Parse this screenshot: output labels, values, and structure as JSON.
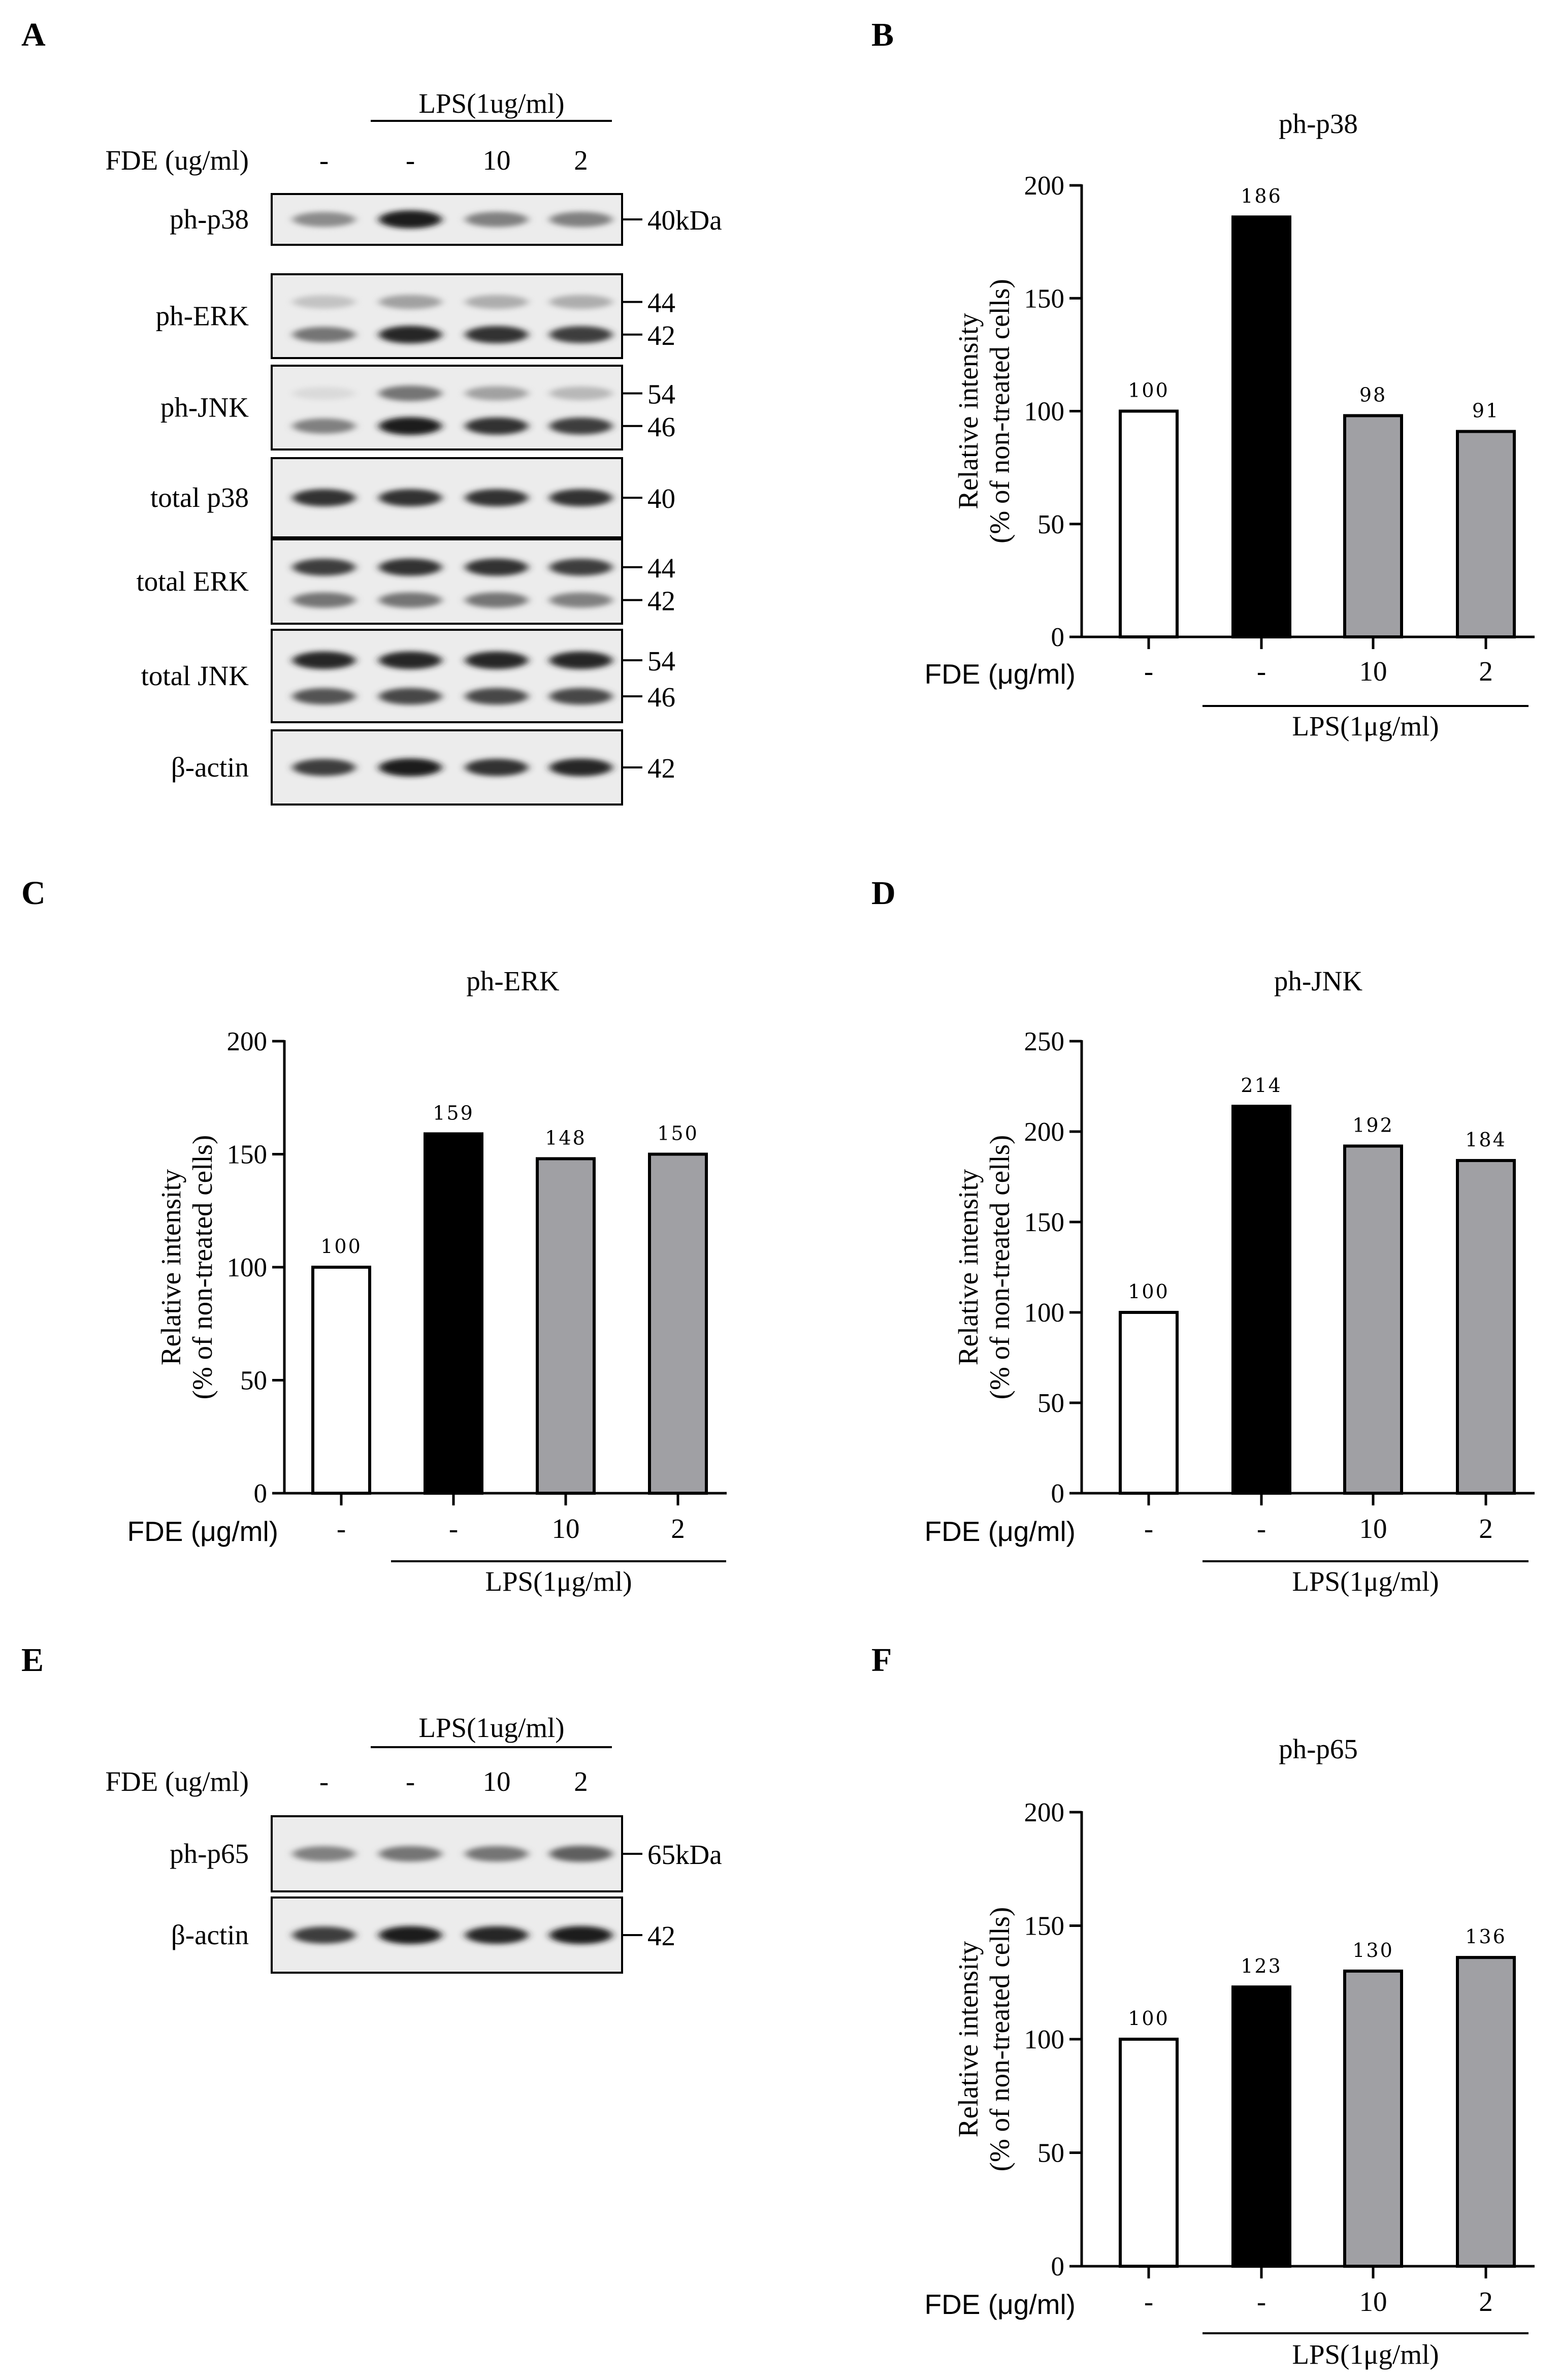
{
  "panels": {
    "A": "A",
    "B": "B",
    "C": "C",
    "D": "D",
    "E": "E",
    "F": "F"
  },
  "blots_A": {
    "treatment_label": "LPS(1ug/ml)",
    "dose_label": "FDE (ug/ml)",
    "doses": [
      "-",
      "-",
      "10",
      "2"
    ],
    "rows": [
      {
        "name": "ph-p38",
        "markers": [
          "40kDa"
        ],
        "bands": [
          [
            0.45,
            0.95,
            0.5,
            0.5
          ]
        ]
      },
      {
        "name": "ph-ERK",
        "markers": [
          "44",
          "42"
        ],
        "bands": [
          [
            0.2,
            0.35,
            0.3,
            0.3
          ],
          [
            0.55,
            0.9,
            0.85,
            0.8
          ]
        ]
      },
      {
        "name": "ph-JNK",
        "markers": [
          "54",
          "46"
        ],
        "bands": [
          [
            0.1,
            0.55,
            0.35,
            0.25
          ],
          [
            0.5,
            0.95,
            0.85,
            0.8
          ]
        ]
      },
      {
        "name": "total p38",
        "markers": [
          "40"
        ],
        "bands": [
          [
            0.85,
            0.85,
            0.85,
            0.85
          ]
        ]
      },
      {
        "name": "total ERK",
        "markers": [
          "44",
          "42"
        ],
        "bands": [
          [
            0.8,
            0.85,
            0.85,
            0.8
          ],
          [
            0.55,
            0.55,
            0.55,
            0.5
          ]
        ]
      },
      {
        "name": "total JNK",
        "markers": [
          "54",
          "46"
        ],
        "bands": [
          [
            0.9,
            0.9,
            0.9,
            0.9
          ],
          [
            0.7,
            0.75,
            0.75,
            0.75
          ]
        ]
      },
      {
        "name": "β-actin",
        "markers": [
          "42"
        ],
        "bands": [
          [
            0.8,
            0.95,
            0.85,
            0.9
          ]
        ]
      }
    ]
  },
  "blots_E": {
    "treatment_label": "LPS(1ug/ml)",
    "dose_label": "FDE (ug/ml)",
    "doses": [
      "-",
      "-",
      "10",
      "2"
    ],
    "rows": [
      {
        "name": "ph-p65",
        "markers": [
          "65kDa"
        ],
        "bands": [
          [
            0.5,
            0.55,
            0.55,
            0.65
          ]
        ]
      },
      {
        "name": "β-actin",
        "markers": [
          "42"
        ],
        "bands": [
          [
            0.8,
            0.95,
            0.9,
            0.95
          ]
        ]
      }
    ]
  },
  "chart_data": [
    {
      "panel": "B",
      "type": "bar",
      "title": "ph-p38",
      "ylabel_line1": "Relative intensity",
      "ylabel_line2": "(% of non-treated cells)",
      "ylim": [
        0,
        200
      ],
      "yticks": [
        "0",
        "50",
        "100",
        "150",
        "200"
      ],
      "dose_label": "FDE (μg/ml)",
      "treatment_label": "LPS(1μg/ml)",
      "categories": [
        "-",
        "-",
        "10",
        "2"
      ],
      "values": [
        100,
        186,
        98,
        91
      ],
      "data_labels": [
        "100",
        "186",
        "98",
        "91"
      ],
      "bar_colors": [
        "#ffffff",
        "#000000",
        "#a0a0a4",
        "#a0a0a4"
      ]
    },
    {
      "panel": "C",
      "type": "bar",
      "title": "ph-ERK",
      "ylabel_line1": "Relative intensity",
      "ylabel_line2": "(% of non-treated cells)",
      "ylim": [
        0,
        200
      ],
      "yticks": [
        "0",
        "50",
        "100",
        "150",
        "200"
      ],
      "dose_label": "FDE (μg/ml)",
      "treatment_label": "LPS(1μg/ml)",
      "categories": [
        "-",
        "-",
        "10",
        "2"
      ],
      "values": [
        100,
        159,
        148,
        150
      ],
      "data_labels": [
        "100",
        "159",
        "148",
        "150"
      ],
      "bar_colors": [
        "#ffffff",
        "#000000",
        "#a0a0a4",
        "#a0a0a4"
      ]
    },
    {
      "panel": "D",
      "type": "bar",
      "title": "ph-JNK",
      "ylabel_line1": "Relative intensity",
      "ylabel_line2": "(% of non-treated cells)",
      "ylim": [
        0,
        250
      ],
      "yticks": [
        "0",
        "50",
        "100",
        "150",
        "200",
        "250"
      ],
      "dose_label": "FDE (μg/ml)",
      "treatment_label": "LPS(1μg/ml)",
      "categories": [
        "-",
        "-",
        "10",
        "2"
      ],
      "values": [
        100,
        214,
        192,
        184
      ],
      "data_labels": [
        "100",
        "214",
        "192",
        "184"
      ],
      "bar_colors": [
        "#ffffff",
        "#000000",
        "#a0a0a4",
        "#a0a0a4"
      ]
    },
    {
      "panel": "F",
      "type": "bar",
      "title": "ph-p65",
      "ylabel_line1": "Relative intensity",
      "ylabel_line2": "(% of non-treated cells)",
      "ylim": [
        0,
        200
      ],
      "yticks": [
        "0",
        "50",
        "100",
        "150",
        "200"
      ],
      "dose_label": "FDE (μg/ml)",
      "treatment_label": "LPS(1μg/ml)",
      "categories": [
        "-",
        "-",
        "10",
        "2"
      ],
      "values": [
        100,
        123,
        130,
        136
      ],
      "data_labels": [
        "100",
        "123",
        "130",
        "136"
      ],
      "bar_colors": [
        "#ffffff",
        "#000000",
        "#a0a0a4",
        "#a0a0a4"
      ]
    }
  ]
}
